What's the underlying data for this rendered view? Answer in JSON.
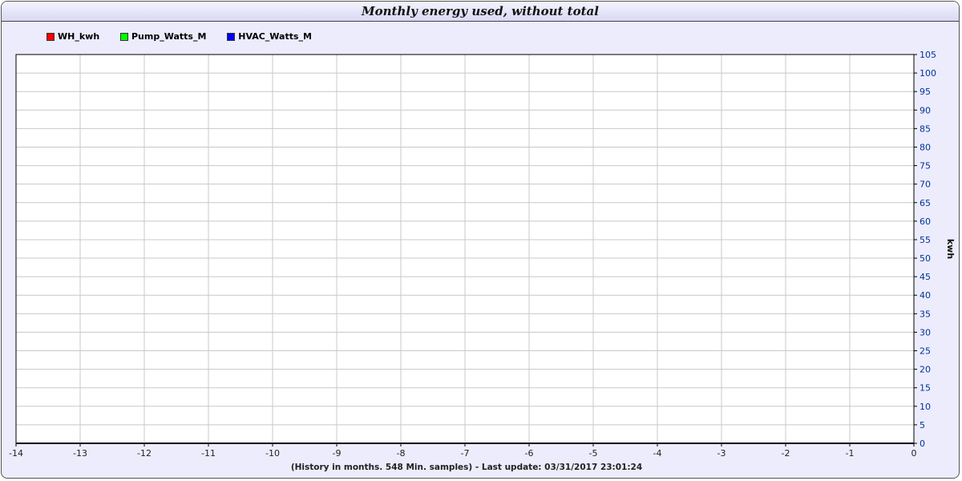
{
  "colors": {
    "WH_kwh": "#ff0000",
    "Pump_Watts_M": "#00ff00",
    "HVAC_Watts_M": "#0000ff",
    "tick_label": "#003399"
  },
  "chart_data": {
    "type": "line",
    "title": "Monthly energy used, without total",
    "xlabel": "(History in months. 548 Min. samples) - Last update: 03/31/2017 23:01:24",
    "ylabel": "kwh",
    "xlim": [
      -14,
      0
    ],
    "ylim": [
      0,
      105
    ],
    "x_ticks": [
      "-14",
      "-13",
      "-12",
      "-11",
      "-10",
      "-9",
      "-8",
      "-7",
      "-6",
      "-5",
      "-4",
      "-3",
      "-2",
      "-1",
      "0"
    ],
    "y_ticks": [
      "0",
      "5",
      "10",
      "15",
      "20",
      "25",
      "30",
      "35",
      "40",
      "45",
      "50",
      "55",
      "60",
      "65",
      "70",
      "75",
      "80",
      "85",
      "90",
      "95",
      "100",
      "105"
    ],
    "grid": true,
    "legend_position": "top-left",
    "series": [
      {
        "name": "WH_kwh",
        "values": []
      },
      {
        "name": "Pump_Watts_M",
        "values": []
      },
      {
        "name": "HVAC_Watts_M",
        "values": []
      }
    ]
  }
}
